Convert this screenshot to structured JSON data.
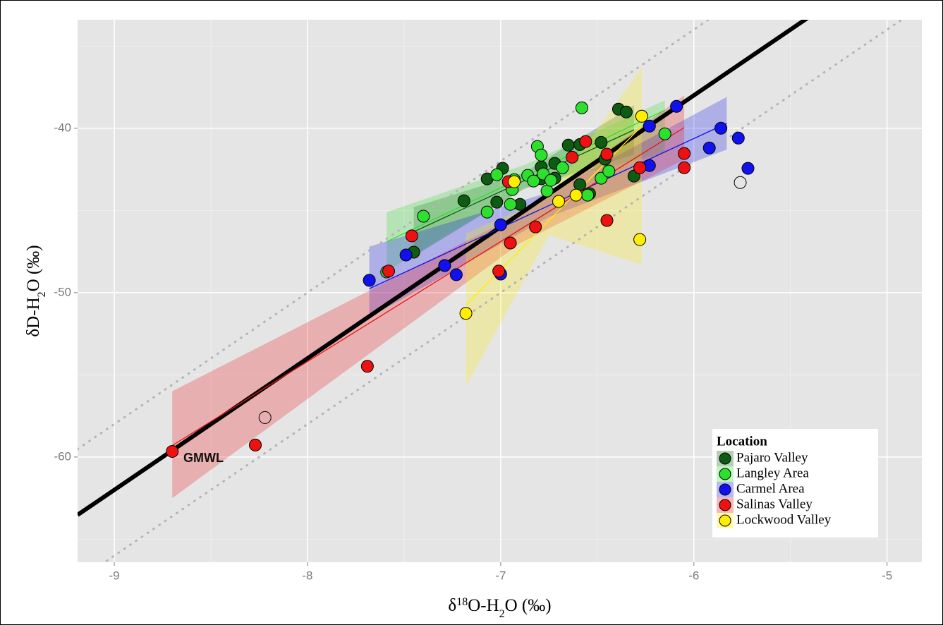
{
  "chart_data": {
    "type": "scatter",
    "xlabel_parts": [
      {
        "text": "δ"
      },
      {
        "text": "18",
        "script": "super"
      },
      {
        "text": "O-H"
      },
      {
        "text": "2",
        "script": "sub"
      },
      {
        "text": "O (‰)"
      }
    ],
    "ylabel_parts": [
      {
        "text": "δD-H"
      },
      {
        "text": "2",
        "script": "sub"
      },
      {
        "text": "O (‰)"
      }
    ],
    "xlim": [
      -9.19,
      -4.82
    ],
    "ylim": [
      -66.4,
      -33.4
    ],
    "xticks": [
      -9,
      -8,
      -7,
      -6,
      -5
    ],
    "yticks": [
      -60,
      -50,
      -40
    ],
    "x_minor": [
      -8.5,
      -7.5,
      -6.5,
      -5.5
    ],
    "y_minor": [
      -65,
      -55,
      -45,
      -35
    ],
    "grid": true,
    "legend_title": "Location",
    "legend_position": "bottom-right",
    "annotation": "GMWL",
    "lines": [
      {
        "slope": 8,
        "intercept": 10,
        "style": "solid"
      },
      {
        "slope": 8,
        "intercept": 14,
        "style": "dotted"
      },
      {
        "slope": 8,
        "intercept": 6,
        "style": "dotted"
      }
    ],
    "series": [
      {
        "name": "Pajaro Valley",
        "color": "#0d5c12",
        "x": [
          -7.19,
          -7.07,
          -6.99,
          -7.02,
          -6.9,
          -7.45,
          -6.79,
          -6.79,
          -6.72,
          -6.65,
          -6.59,
          -6.72,
          -6.59,
          -6.54,
          -6.48,
          -6.46,
          -6.39,
          -6.35,
          -6.31
        ],
        "y": [
          -44.41,
          -43.08,
          -42.44,
          -44.5,
          -44.63,
          -47.54,
          -42.36,
          -43.08,
          -42.14,
          -41.03,
          -40.99,
          -43.04,
          -43.43,
          -43.98,
          -40.86,
          -41.88,
          -38.84,
          -39.01,
          -42.91
        ],
        "fit": {
          "x": [
            -7.45,
            -6.31
          ],
          "y": [
            -46.3,
            -40.1
          ]
        },
        "band": {
          "x": [
            -7.45,
            -6.88,
            -6.31
          ],
          "lower": [
            -47.8,
            -43.7,
            -41.6
          ],
          "upper": [
            -44.8,
            -42.7,
            -38.6
          ]
        }
      },
      {
        "name": "Langley Area",
        "color": "#2de02d",
        "x": [
          -7.4,
          -7.07,
          -7.02,
          -6.95,
          -6.94,
          -6.93,
          -6.86,
          -6.83,
          -6.81,
          -6.79,
          -6.78,
          -6.76,
          -6.74,
          -6.68,
          -6.58,
          -6.55,
          -6.48,
          -6.44,
          -6.15,
          -7.59
        ],
        "y": [
          -45.35,
          -45.1,
          -42.83,
          -44.63,
          -43.73,
          -43.13,
          -42.87,
          -43.21,
          -41.11,
          -41.63,
          -42.78,
          -43.81,
          -43.17,
          -42.4,
          -38.76,
          -44.07,
          -43.04,
          -42.61,
          -40.34,
          -48.74
        ],
        "fit": {
          "x": [
            -7.59,
            -6.15
          ],
          "y": [
            -46.9,
            -38.9
          ]
        },
        "band": {
          "x": [
            -7.59,
            -6.87,
            -6.15
          ],
          "lower": [
            -48.7,
            -43.6,
            -41.5
          ],
          "upper": [
            -45.1,
            -42.2,
            -38.3
          ]
        }
      },
      {
        "name": "Carmel Area",
        "color": "#1111ee",
        "x": [
          -7.68,
          -7.49,
          -7.29,
          -7.23,
          -7.0,
          -7.0,
          -6.23,
          -6.23,
          -6.09,
          -5.92,
          -5.86,
          -5.77,
          -5.72
        ],
        "y": [
          -49.25,
          -47.71,
          -48.35,
          -48.91,
          -45.87,
          -48.87,
          -39.87,
          -42.27,
          -38.67,
          -41.2,
          -40.0,
          -40.6,
          -42.44
        ],
        "fit": {
          "x": [
            -7.68,
            -5.83
          ],
          "y": [
            -49.76,
            -39.7
          ]
        },
        "band": {
          "x": [
            -7.68,
            -6.75,
            -5.83
          ],
          "lower": [
            -51.5,
            -45.4,
            -41.3
          ],
          "upper": [
            -47.2,
            -43.9,
            -38.1
          ]
        }
      },
      {
        "name": "Salinas Valley",
        "color": "#ee1111",
        "x": [
          -8.7,
          -8.27,
          -7.69,
          -7.58,
          -7.46,
          -7.01,
          -6.95,
          -6.96,
          -6.82,
          -6.63,
          -6.56,
          -6.45,
          -6.45,
          -6.28,
          -6.05,
          -6.05
        ],
        "y": [
          -59.66,
          -59.27,
          -54.48,
          -48.69,
          -46.55,
          -48.69,
          -46.98,
          -43.25,
          -46.0,
          -41.76,
          -40.81,
          -45.61,
          -41.58,
          -42.4,
          -41.54,
          -42.4
        ],
        "fit": {
          "x": [
            -8.7,
            -6.05
          ],
          "y": [
            -59.3,
            -39.96
          ]
        },
        "band": {
          "x": [
            -8.7,
            -6.9,
            -6.05
          ],
          "lower": [
            -62.5,
            -47.0,
            -41.9
          ],
          "upper": [
            -56.0,
            -45.2,
            -38.0
          ]
        }
      },
      {
        "name": "Lockwood Valley",
        "color": "#ffee00",
        "x": [
          -7.18,
          -6.93,
          -6.7,
          -6.61,
          -6.27,
          -6.28
        ],
        "y": [
          -51.26,
          -43.25,
          -44.45,
          -44.07,
          -39.27,
          -46.77
        ],
        "fit": {
          "x": [
            -7.18,
            -6.27
          ],
          "y": [
            -50.75,
            -39.87
          ]
        },
        "band": {
          "x": [
            -7.18,
            -6.75,
            -6.27
          ],
          "lower": [
            -55.7,
            -46.5,
            -48.3
          ],
          "upper": [
            -46.4,
            -44.2,
            -36.3
          ]
        }
      },
      {
        "color": "none",
        "x": [
          -8.22,
          -5.76
        ],
        "y": [
          -57.6,
          -43.3
        ]
      }
    ]
  }
}
